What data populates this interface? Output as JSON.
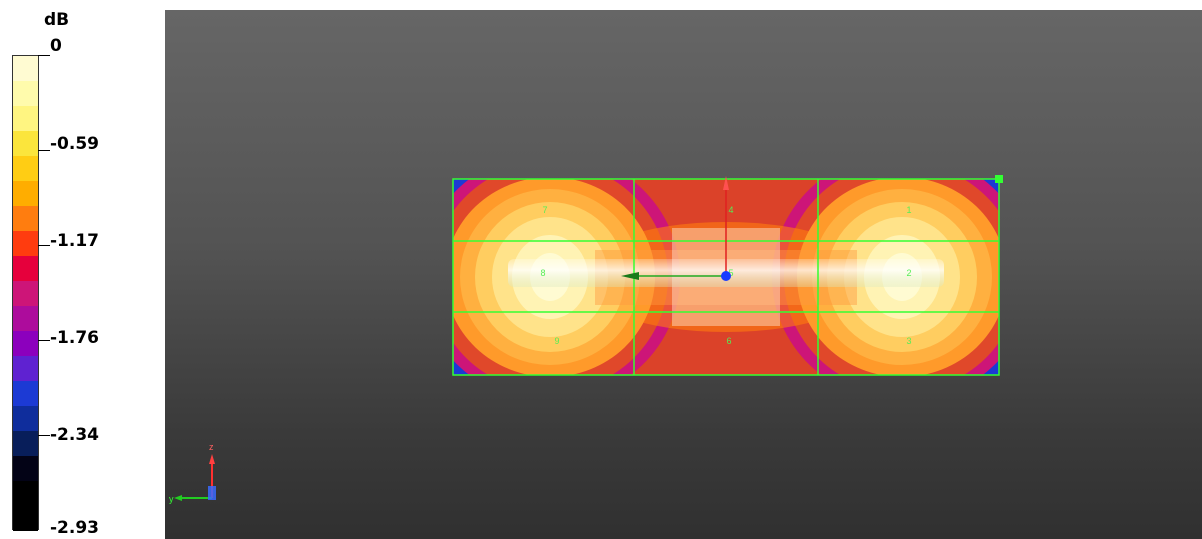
{
  "legend": {
    "unit": "dB",
    "tick_labels": [
      "0",
      "-0.59",
      "-1.17",
      "-1.76",
      "-2.34",
      "-2.93"
    ],
    "swatch_colors": [
      "#fffbd2",
      "#fffbac",
      "#fff581",
      "#fbe53c",
      "#ffcd14",
      "#ffad00",
      "#ff7d0f",
      "#ff3c0f",
      "#e6003c",
      "#cd1578",
      "#ad0c9c",
      "#8c00bd",
      "#5f22d1",
      "#1c3ad4",
      "#0f2d9c",
      "#081e5a",
      "#030316",
      "#000000",
      "#000000"
    ]
  },
  "viewport": {
    "sensor_labels": [
      "7",
      "4",
      "1",
      "8",
      "5",
      "2",
      "9",
      "6",
      "3"
    ],
    "axis_labels": {
      "y": "y",
      "z": "z"
    },
    "background_top": "#666666",
    "background_bottom": "#303030",
    "grid_color": "#33ff33"
  }
}
